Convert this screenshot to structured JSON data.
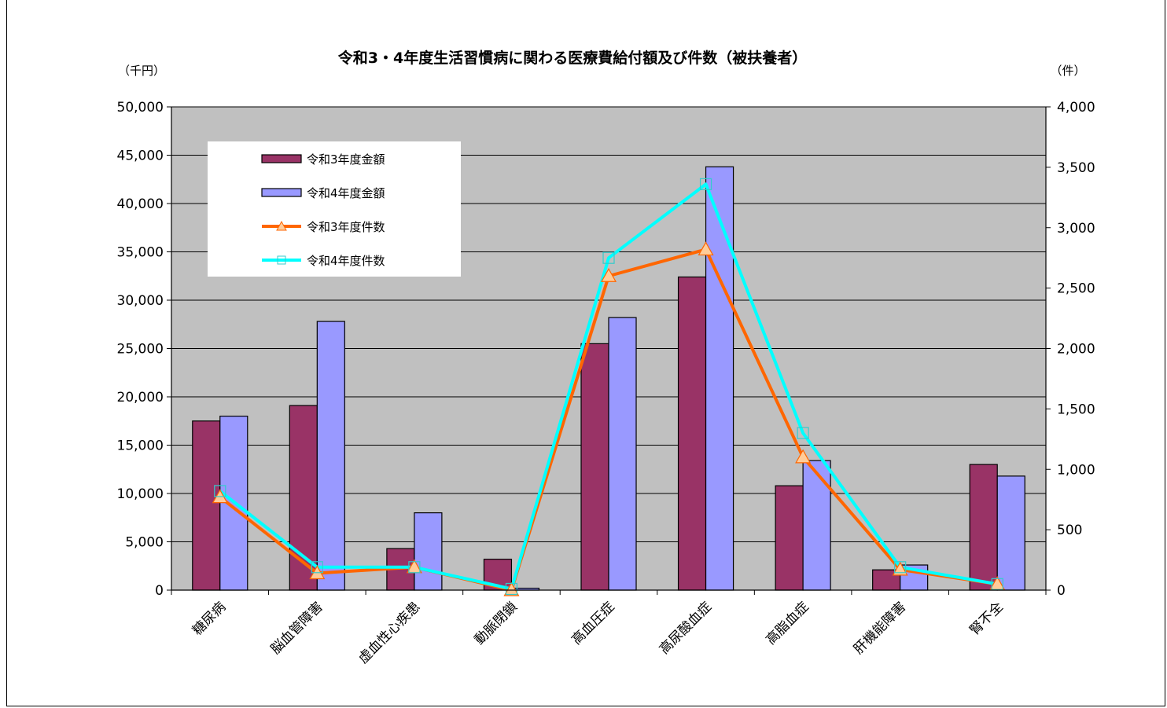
{
  "chart_data": {
    "type": "bar",
    "title": "令和3・4年度生活習慣病に関わる医療費給付額及び件数（被扶養者）",
    "y_left_unit": "（千円）",
    "y_right_unit": "（件）",
    "categories": [
      "糖尿病",
      "脳血管障害",
      "虚血性心疾患",
      "動脈閉鎖",
      "高血圧症",
      "高尿酸血症",
      "高脂血症",
      "肝機能障害",
      "腎不全"
    ],
    "y_left_ticks": [
      "0",
      "5,000",
      "10,000",
      "15,000",
      "20,000",
      "25,000",
      "30,000",
      "35,000",
      "40,000",
      "45,000",
      "50,000"
    ],
    "y_right_ticks": [
      "0",
      "500",
      "1,000",
      "1,500",
      "2,000",
      "2,500",
      "3,000",
      "3,500",
      "4,000"
    ],
    "y_left_range": [
      0,
      50000
    ],
    "y_right_range": [
      0,
      4000
    ],
    "grid": true,
    "legend_position": "top-left",
    "bar_series": [
      {
        "name": "令和3年度金額",
        "color": "#993366",
        "values": [
          17500,
          19100,
          4300,
          3200,
          25500,
          32400,
          10800,
          2100,
          13000
        ]
      },
      {
        "name": "令和4年度金額",
        "color": "#9999ff",
        "values": [
          18000,
          27800,
          8000,
          200,
          28200,
          43800,
          13400,
          2600,
          11800
        ]
      }
    ],
    "line_series": [
      {
        "name": "令和3年度件数",
        "color": "#ff6600",
        "marker": "triangle",
        "values": [
          770,
          140,
          190,
          0,
          2600,
          2820,
          1100,
          170,
          50
        ]
      },
      {
        "name": "令和4年度件数",
        "color": "#00ffff",
        "marker": "square",
        "values": [
          820,
          190,
          190,
          10,
          2750,
          3360,
          1300,
          190,
          50
        ]
      }
    ]
  }
}
